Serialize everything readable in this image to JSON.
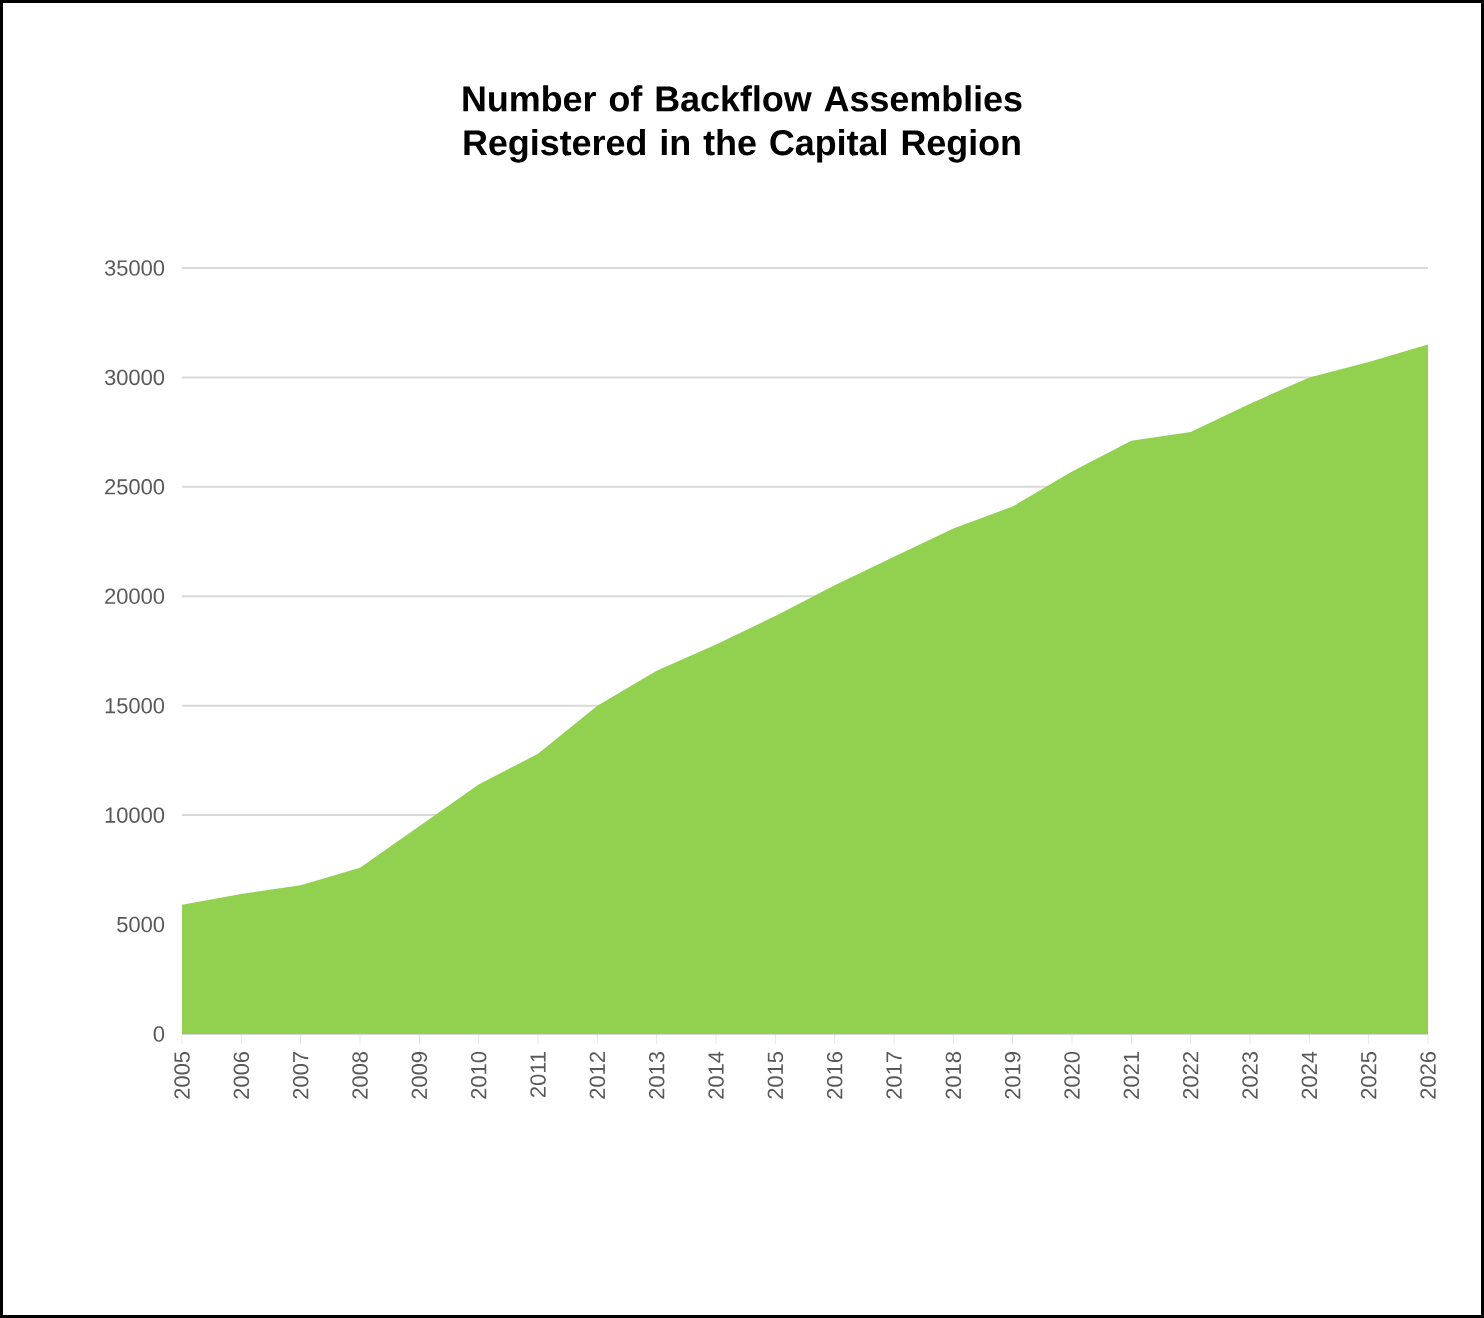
{
  "chart_data": {
    "type": "area",
    "title": "Number of Backflow Assemblies Registered in the Capital Region",
    "x": [
      2005,
      2006,
      2007,
      2008,
      2009,
      2010,
      2011,
      2012,
      2013,
      2014,
      2015,
      2016,
      2017,
      2018,
      2019,
      2020,
      2021,
      2022,
      2023,
      2024,
      2025,
      2026
    ],
    "values": [
      5900,
      6400,
      6800,
      7600,
      9500,
      11400,
      12800,
      15000,
      16600,
      17800,
      19100,
      20500,
      21800,
      23100,
      24100,
      25700,
      27100,
      27500,
      28800,
      30000,
      30700,
      31500
    ],
    "color": "#92d050",
    "xlim": [
      2005,
      2026
    ],
    "xticks": [
      2005,
      2006,
      2007,
      2008,
      2009,
      2010,
      2011,
      2012,
      2013,
      2014,
      2015,
      2016,
      2017,
      2018,
      2019,
      2020,
      2021,
      2022,
      2023,
      2024,
      2025,
      2026
    ],
    "ylim": [
      0,
      35000
    ],
    "yticks": [
      0,
      5000,
      10000,
      15000,
      20000,
      25000,
      30000,
      35000
    ],
    "grid": "y"
  }
}
